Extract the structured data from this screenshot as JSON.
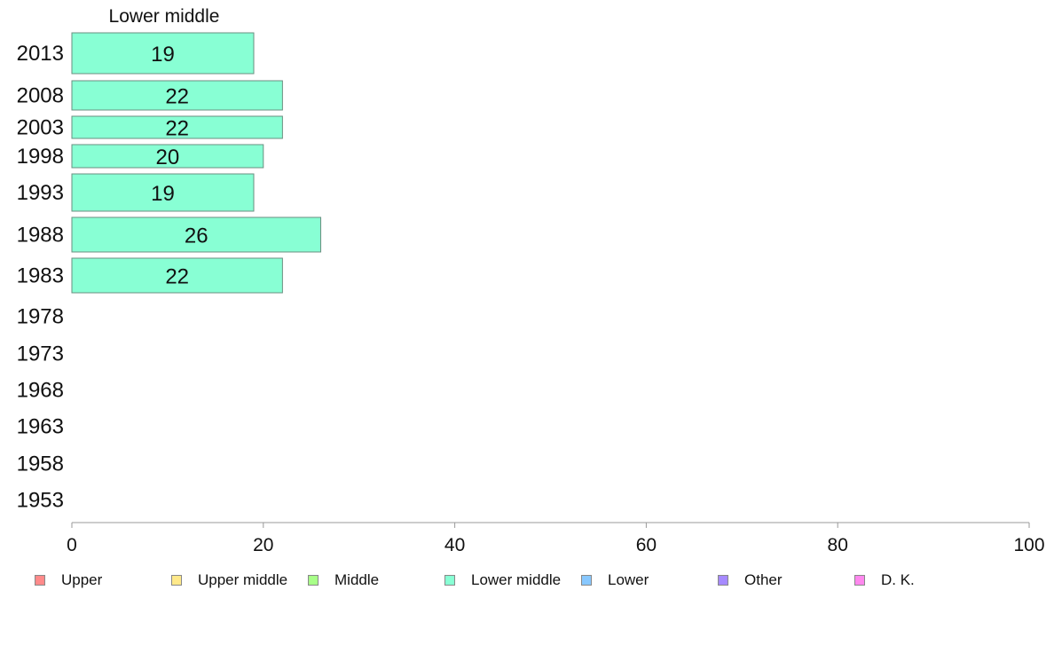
{
  "chart_data": {
    "type": "bar",
    "orientation": "horizontal",
    "title": "Lower middle",
    "categories": [
      "2013",
      "2008",
      "2003",
      "1998",
      "1993",
      "1988",
      "1983",
      "1978",
      "1973",
      "1968",
      "1963",
      "1958",
      "1953"
    ],
    "series": [
      {
        "name": "Lower middle",
        "color": "#88ffd4",
        "values": [
          19,
          22,
          22,
          20,
          19,
          26,
          22,
          null,
          null,
          null,
          null,
          null,
          null
        ]
      }
    ],
    "xlim": [
      0,
      100
    ],
    "xticks": [
      0,
      20,
      40,
      60,
      80,
      100
    ],
    "grid": false,
    "legend_position": "bottom",
    "legend": [
      {
        "label": "Upper",
        "color": "#ff8a8a"
      },
      {
        "label": "Upper middle",
        "color": "#ffe98a"
      },
      {
        "label": "Middle",
        "color": "#a8ff88"
      },
      {
        "label": "Lower middle",
        "color": "#88ffd4"
      },
      {
        "label": "Lower",
        "color": "#88c8ff"
      },
      {
        "label": "Other",
        "color": "#a68aff"
      },
      {
        "label": "D. K.",
        "color": "#ff88ee"
      }
    ]
  }
}
